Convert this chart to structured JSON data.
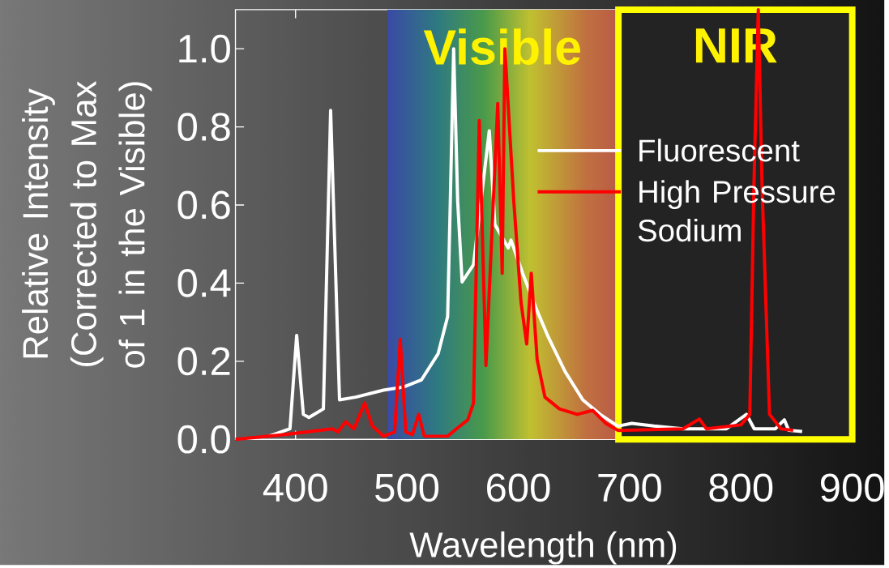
{
  "chart_data": {
    "type": "line",
    "xlabel": "Wavelength (nm)",
    "ylabel": "Relative Intensity (Corrected to Max of 1 in the Visible)",
    "xlim": [
      346,
      900
    ],
    "xticks": [
      400,
      500,
      600,
      700,
      800,
      900
    ],
    "ylim": [
      0,
      1.1
    ],
    "yticks": [
      {
        "value": 0,
        "label": "0.0"
      },
      {
        "value": 0.2,
        "label": "0.2"
      },
      {
        "value": 0.4,
        "label": "0.4"
      },
      {
        "value": 0.6,
        "label": "0.6"
      },
      {
        "value": 0.8,
        "label": "0.8"
      },
      {
        "value": 1.0,
        "label": "1.0"
      }
    ],
    "legend": "right",
    "line_style": "solid",
    "bands": [
      {
        "axis": "x",
        "from": 482,
        "to": 690,
        "label": "Visible"
      },
      {
        "axis": "x",
        "from": 690,
        "to": 900,
        "label": "NIR",
        "color": "#ffff00"
      }
    ],
    "series": [
      {
        "name": "Fluorescent",
        "color": "#ffffff",
        "x": [
          376,
          395,
          401,
          407,
          412,
          425,
          431.5,
          439.5,
          454,
          479,
          497,
          513,
          528,
          536.6,
          539,
          542,
          545.6,
          549.6,
          559.8,
          574,
          579,
          591,
          593.5,
          604,
          617,
          627,
          642,
          658,
          673.5,
          689.5,
          702,
          722,
          748,
          787,
          805,
          812,
          831,
          839,
          843,
          855
        ],
        "values": [
          0.008,
          0.027,
          0.266,
          0.064,
          0.056,
          0.078,
          0.842,
          0.101,
          0.108,
          0.126,
          0.134,
          0.152,
          0.219,
          0.314,
          0.61,
          1.0,
          0.61,
          0.403,
          0.447,
          0.79,
          0.55,
          0.49,
          0.51,
          0.425,
          0.329,
          0.262,
          0.174,
          0.101,
          0.064,
          0.034,
          0.041,
          0.034,
          0.027,
          0.027,
          0.064,
          0.027,
          0.027,
          0.05,
          0.023,
          0.02
        ]
      },
      {
        "name": "High Pressure Sodium",
        "color": "#ff0000",
        "x": [
          346,
          389,
          433,
          438,
          445,
          452.5,
          462,
          469,
          479,
          489,
          494,
          499,
          505,
          510.6,
          515.6,
          536.6,
          544.5,
          554.7,
          559.8,
          565,
          571,
          581.6,
          585.6,
          588,
          596,
          602.5,
          607.6,
          611.7,
          617,
          624,
          637,
          653,
          667,
          678.6,
          689.5,
          748,
          762.7,
          769,
          800,
          808,
          811.7,
          815.6,
          819,
          825.7,
          836,
          847
        ],
        "values": [
          0.0,
          0.012,
          0.027,
          0.019,
          0.045,
          0.027,
          0.093,
          0.034,
          0.008,
          0.019,
          0.256,
          0.019,
          0.012,
          0.064,
          0.008,
          0.008,
          0.027,
          0.05,
          0.093,
          0.816,
          0.189,
          0.86,
          0.425,
          1.0,
          0.61,
          0.351,
          0.244,
          0.425,
          0.204,
          0.108,
          0.078,
          0.064,
          0.074,
          0.041,
          0.023,
          0.027,
          0.052,
          0.027,
          0.037,
          0.064,
          0.65,
          1.1,
          0.65,
          0.064,
          0.027,
          0.023
        ]
      }
    ]
  }
}
